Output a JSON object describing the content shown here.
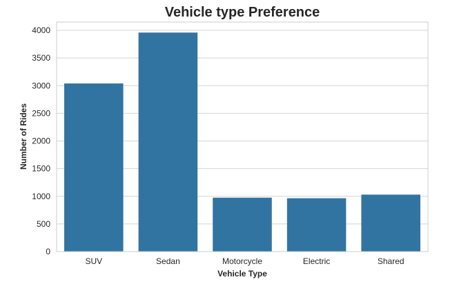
{
  "chart_data": {
    "type": "bar",
    "title": "Vehicle type Preference",
    "xlabel": "Vehicle Type",
    "ylabel": "Number of Rides",
    "categories": [
      "SUV",
      "Sedan",
      "Motorcycle",
      "Electric",
      "Shared"
    ],
    "values": [
      3040,
      3960,
      975,
      965,
      1030
    ],
    "ylim": [
      0,
      4150
    ],
    "yticks": [
      0,
      500,
      1000,
      1500,
      2000,
      2500,
      3000,
      3500,
      4000
    ],
    "grid": "horizontal",
    "bar_color": "#3274a1"
  }
}
